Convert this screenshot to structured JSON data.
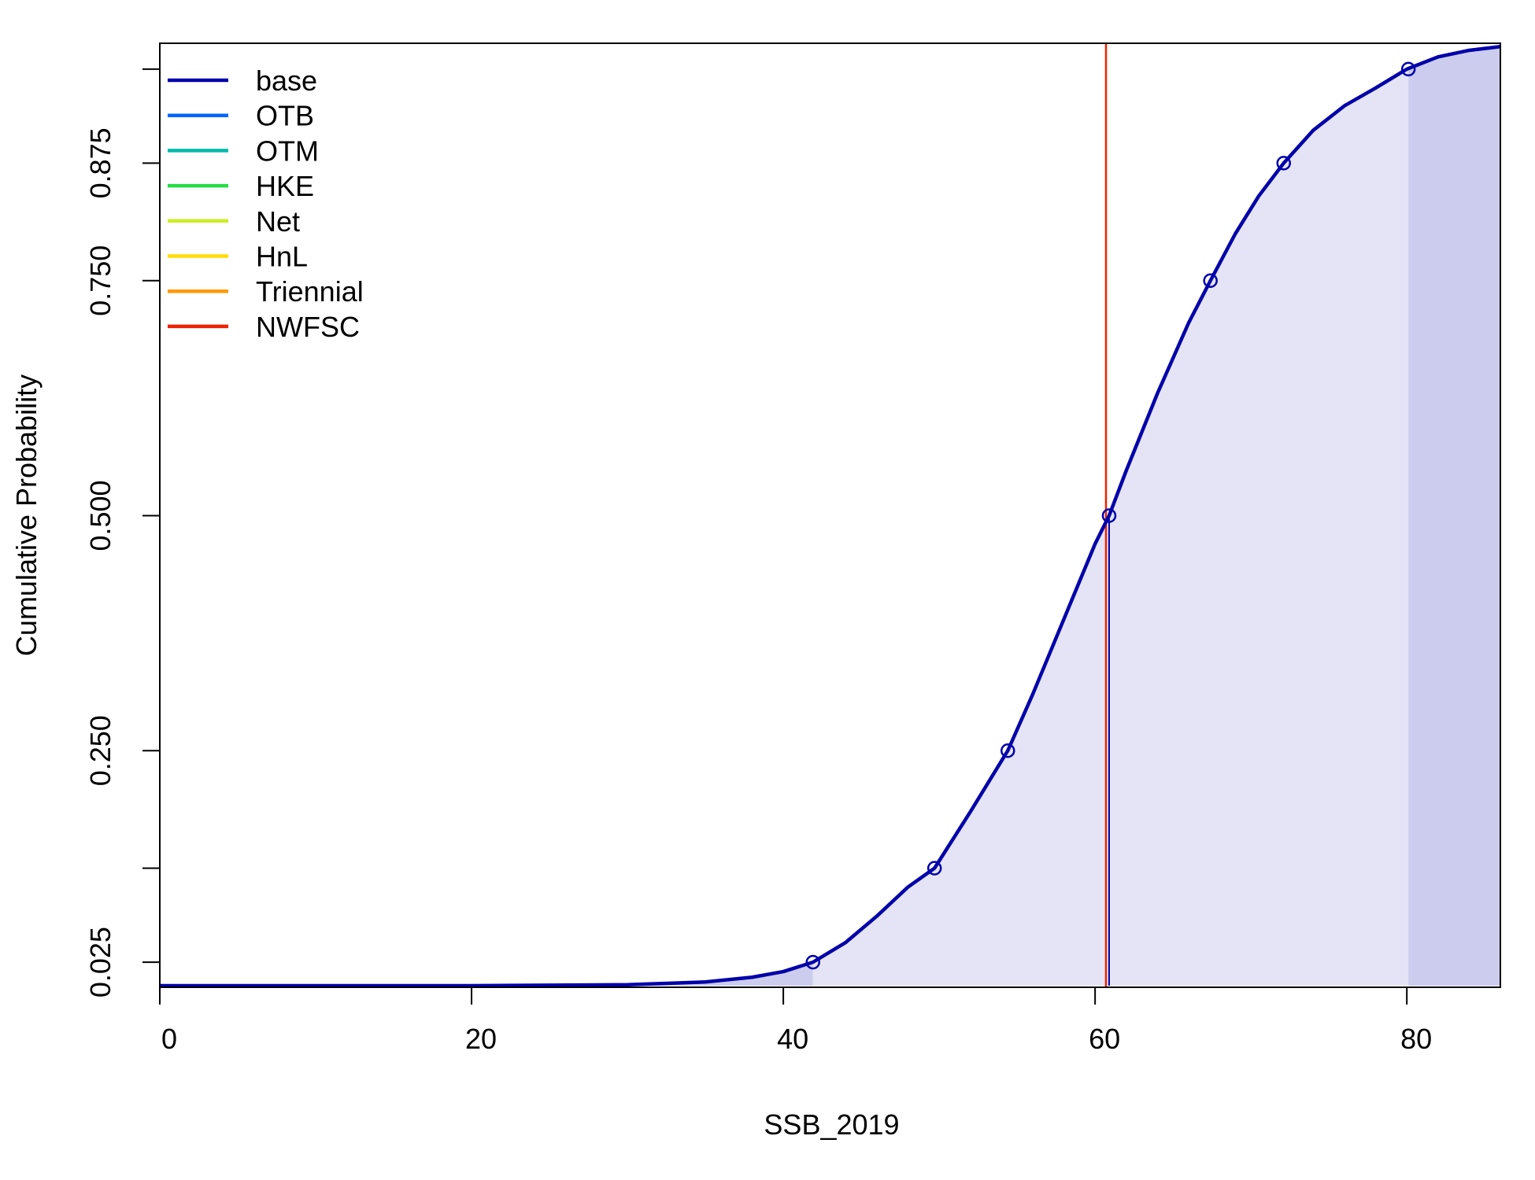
{
  "chart_data": {
    "type": "line",
    "xlabel": "SSB_2019",
    "ylabel": "Cumulative Probability",
    "xlim": [
      0,
      86
    ],
    "ylim": [
      0,
      1
    ],
    "x_ticks": [
      0,
      20,
      40,
      60,
      80
    ],
    "x_tick_labels": [
      "0",
      "20",
      "40",
      "60",
      "80"
    ],
    "y_ticks": [
      0.025,
      0.125,
      0.25,
      0.5,
      0.75,
      0.875,
      0.975
    ],
    "y_tick_labels": [
      "0.025",
      "",
      "0.250",
      "0.500",
      "0.750",
      "0.875",
      ""
    ],
    "grid": false,
    "legend_position": "top-left",
    "legend": [
      {
        "name": "base",
        "color": "#0000AA"
      },
      {
        "name": "OTB",
        "color": "#0066FF"
      },
      {
        "name": "OTM",
        "color": "#00BBAA"
      },
      {
        "name": "HKE",
        "color": "#22DD44"
      },
      {
        "name": "Net",
        "color": "#CCEE22"
      },
      {
        "name": "HnL",
        "color": "#FFDD00"
      },
      {
        "name": "Triennial",
        "color": "#FF9900"
      },
      {
        "name": "NWFSC",
        "color": "#EE2200"
      }
    ],
    "series": [
      {
        "name": "base",
        "color": "#0000AA",
        "curve": {
          "x": [
            0,
            20,
            30,
            35,
            38,
            40,
            41.9,
            44,
            46,
            48,
            49.7,
            52,
            54.4,
            56,
            58,
            60,
            60.9,
            62,
            64,
            66,
            67.4,
            69,
            70.5,
            72.1,
            74,
            76,
            78,
            80,
            82,
            84,
            86
          ],
          "y": [
            0.0,
            0.0,
            0.001,
            0.004,
            0.009,
            0.015,
            0.025,
            0.046,
            0.074,
            0.105,
            0.125,
            0.185,
            0.25,
            0.31,
            0.39,
            0.47,
            0.5,
            0.548,
            0.63,
            0.705,
            0.75,
            0.8,
            0.84,
            0.875,
            0.91,
            0.936,
            0.955,
            0.975,
            0.988,
            0.995,
            0.999
          ]
        },
        "quantile_points": {
          "x": [
            41.9,
            49.7,
            54.4,
            60.9,
            67.4,
            72.1,
            80.1
          ],
          "y": [
            0.025,
            0.125,
            0.25,
            0.5,
            0.75,
            0.875,
            0.975
          ]
        },
        "interval_lower": 41.9,
        "interval_upper": 80.1,
        "median": 60.9,
        "fill_color": "#E4E4F6",
        "tail_fill_color": "#CCCCEE"
      }
    ],
    "reference_line": {
      "x": 60.7,
      "color": "#EE2200"
    }
  }
}
